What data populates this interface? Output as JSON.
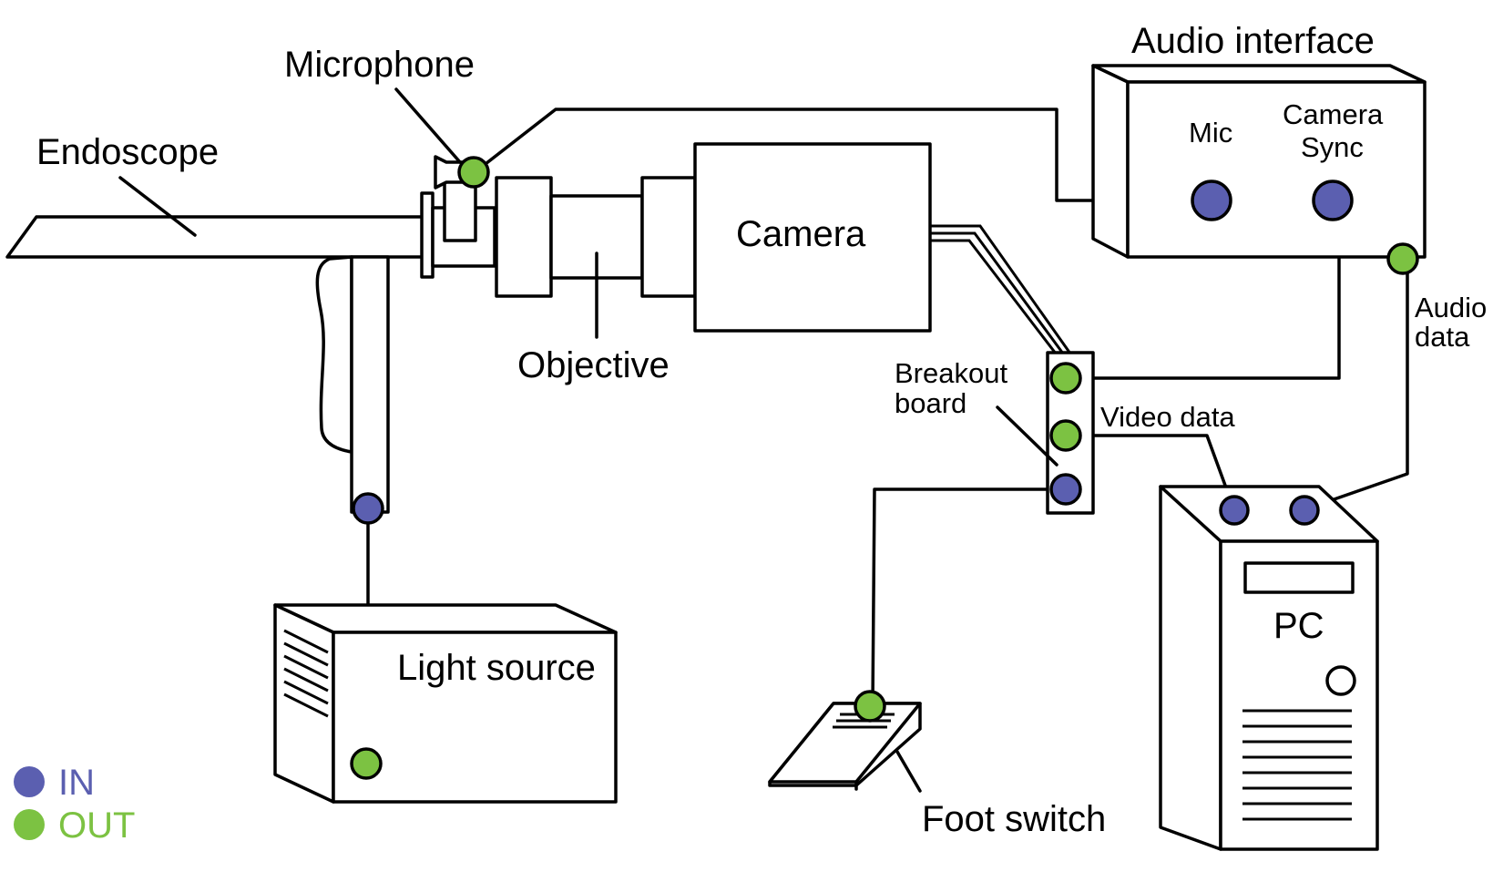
{
  "colors": {
    "in": "#5b5fb0",
    "out": "#7cc242",
    "stroke": "#000000",
    "background": "#ffffff"
  },
  "labels": {
    "endoscope": "Endoscope",
    "microphone": "Microphone",
    "objective": "Objective",
    "camera": "Camera",
    "audio_interface": "Audio interface",
    "mic": "Mic",
    "camera_sync_line1": "Camera",
    "camera_sync_line2": "Sync",
    "audio_data_line1": "Audio",
    "audio_data_line2": "data",
    "breakout_line1": "Breakout",
    "breakout_line2": "board",
    "video_data": "Video data",
    "pc": "PC",
    "light_source": "Light source",
    "foot_switch": "Foot switch"
  },
  "legend": [
    {
      "label": "IN",
      "color": "#5b5fb0"
    },
    {
      "label": "OUT",
      "color": "#7cc242"
    }
  ]
}
